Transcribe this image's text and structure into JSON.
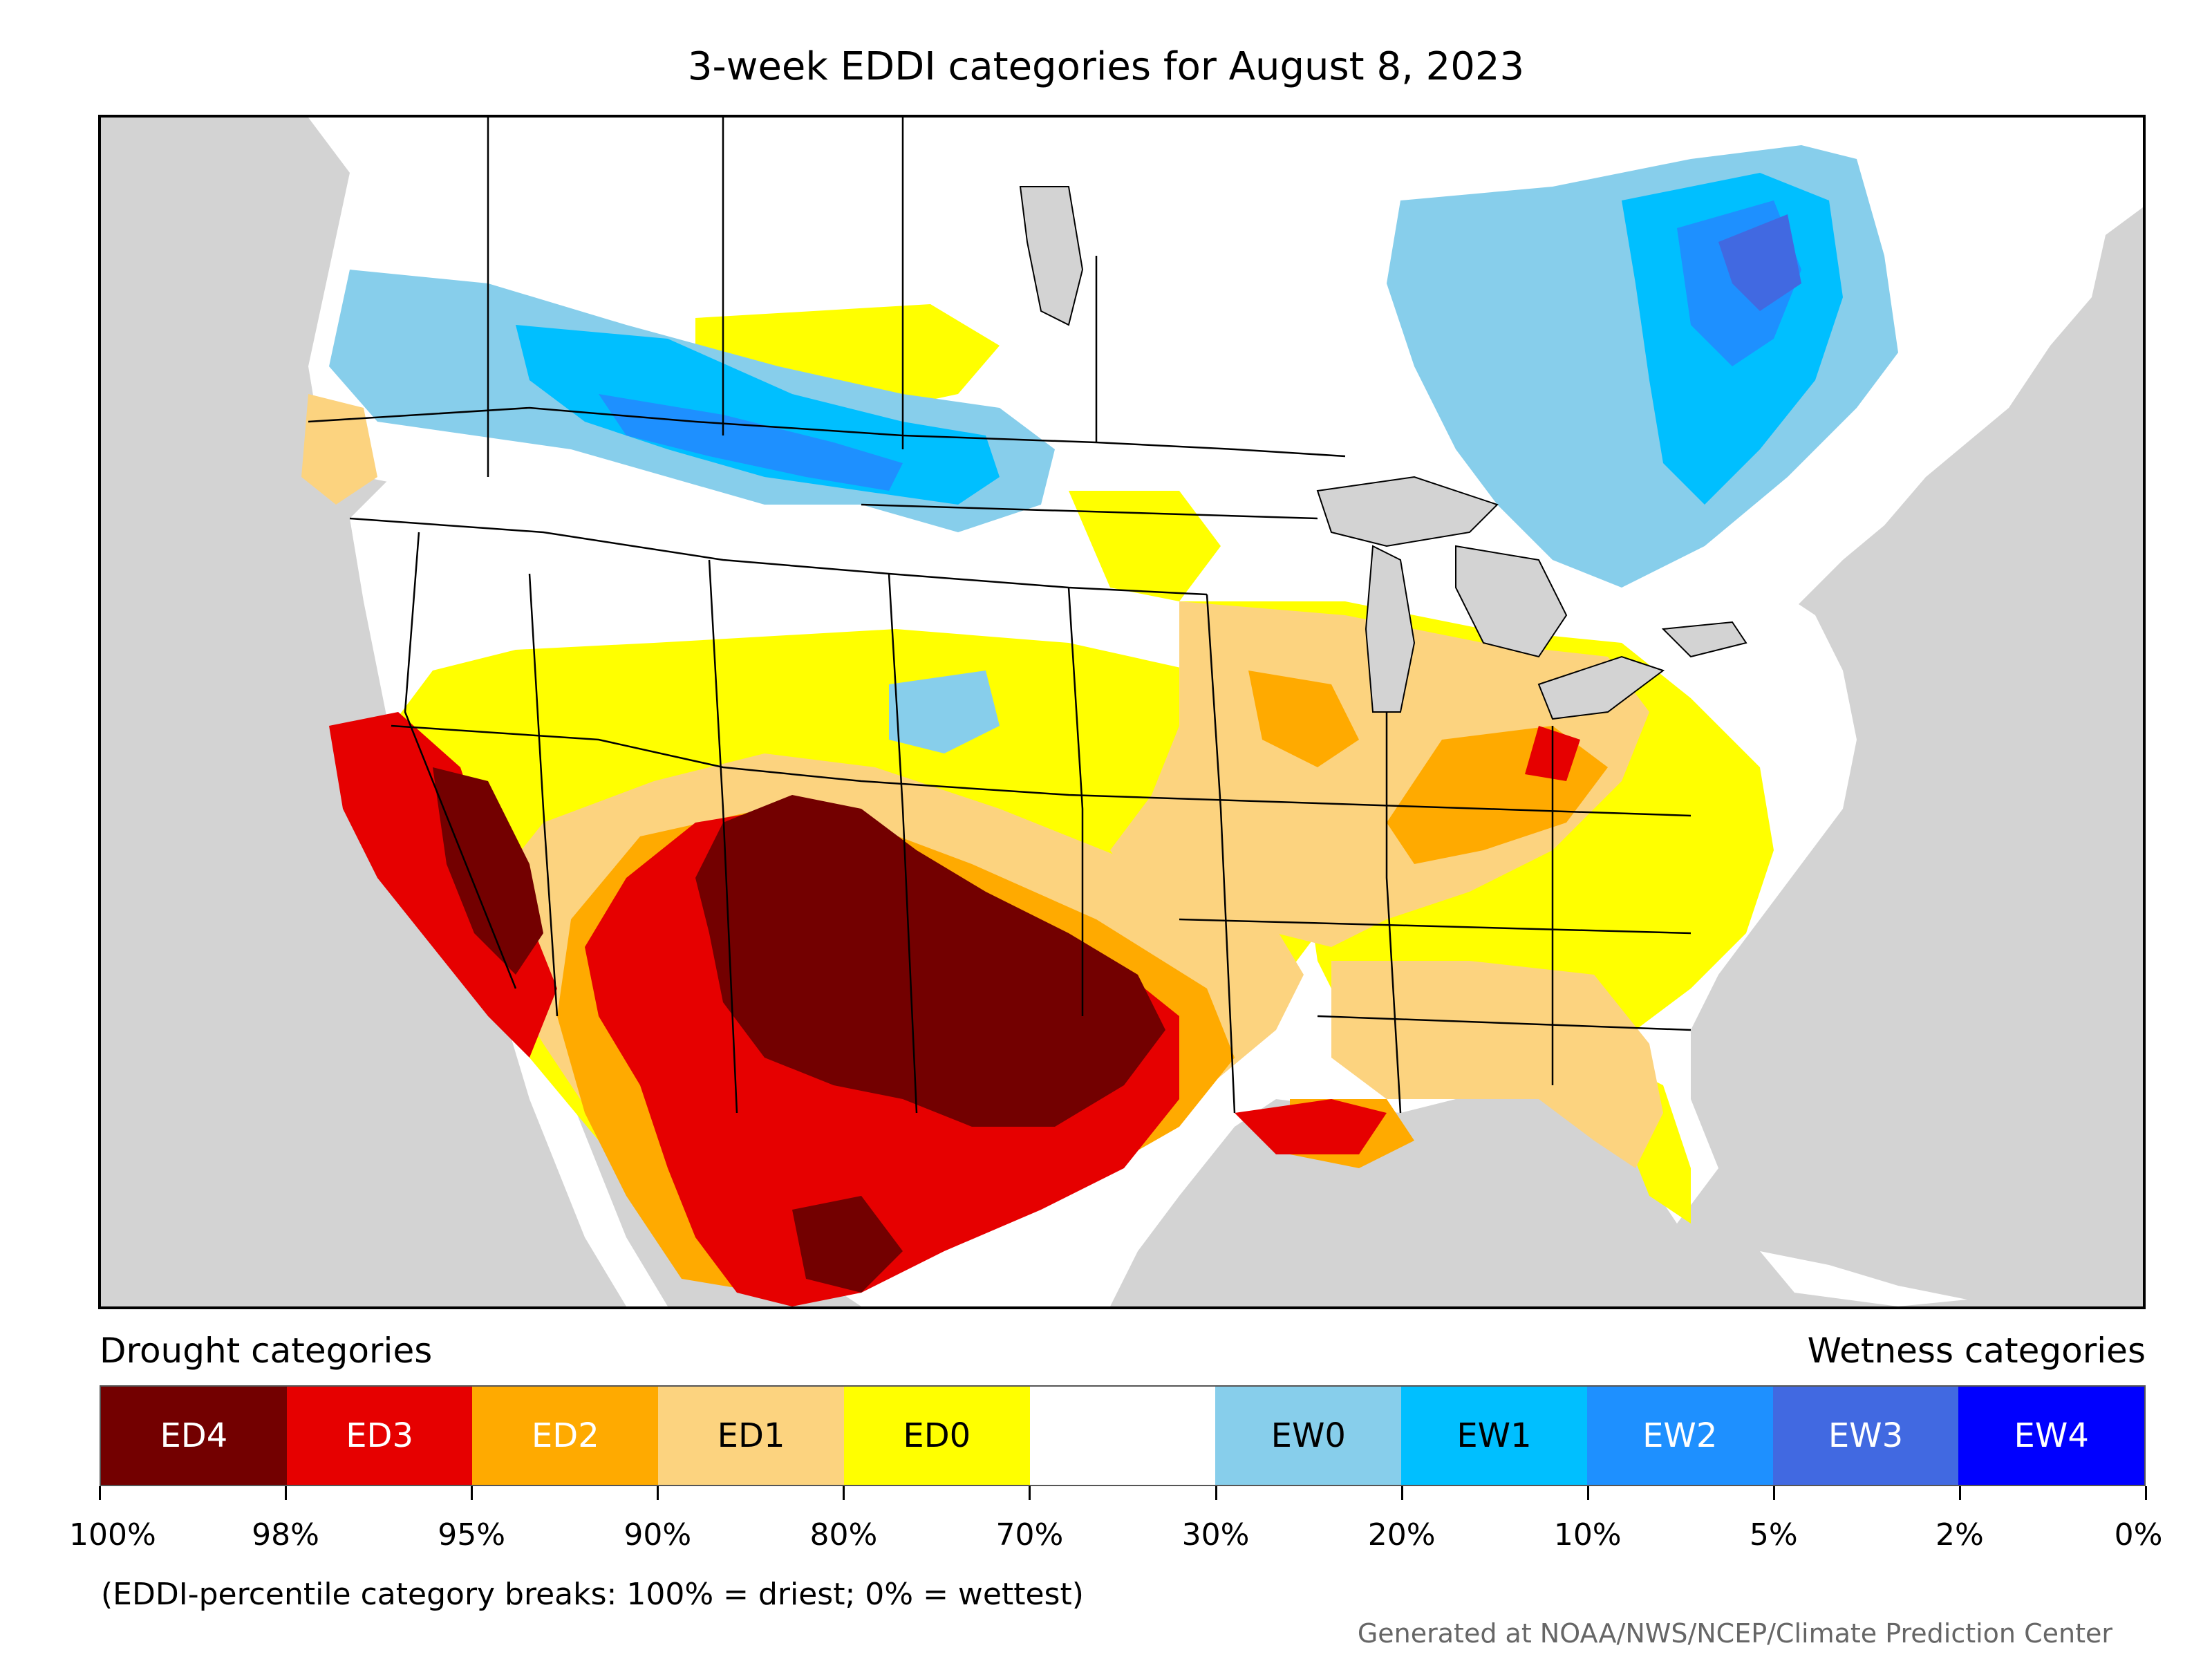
{
  "title": "3-week EDDI categories for August 8, 2023",
  "legend": {
    "drought_heading": "Drought categories",
    "wetness_heading": "Wetness categories",
    "categories": [
      {
        "label": "ED4",
        "color": "#730000",
        "text_color": "#ffffff"
      },
      {
        "label": "ED3",
        "color": "#e60000",
        "text_color": "#ffffff"
      },
      {
        "label": "ED2",
        "color": "#ffaa00",
        "text_color": "#ffffff"
      },
      {
        "label": "ED1",
        "color": "#fcd37f",
        "text_color": "#000000"
      },
      {
        "label": "ED0",
        "color": "#ffff00",
        "text_color": "#000000"
      },
      {
        "label": "",
        "color": "#ffffff",
        "text_color": "#000000"
      },
      {
        "label": "EW0",
        "color": "#87ceeb",
        "text_color": "#000000"
      },
      {
        "label": "EW1",
        "color": "#00bfff",
        "text_color": "#000000"
      },
      {
        "label": "EW2",
        "color": "#1e90ff",
        "text_color": "#ffffff"
      },
      {
        "label": "EW3",
        "color": "#4169e1",
        "text_color": "#ffffff"
      },
      {
        "label": "EW4",
        "color": "#0000ff",
        "text_color": "#ffffff"
      }
    ],
    "breaks": [
      "100%",
      "98%",
      "95%",
      "90%",
      "80%",
      "70%",
      "30%",
      "20%",
      "10%",
      "5%",
      "2%",
      "0%"
    ]
  },
  "note": "(EDDI-percentile category breaks: 100% = driest; 0% = wettest)",
  "credit": "Generated at NOAA/NWS/NCEP/Climate Prediction Center",
  "map": {
    "ocean_color": "#d3d3d3",
    "land_color": "#ffffff",
    "border_color": "#000000"
  }
}
